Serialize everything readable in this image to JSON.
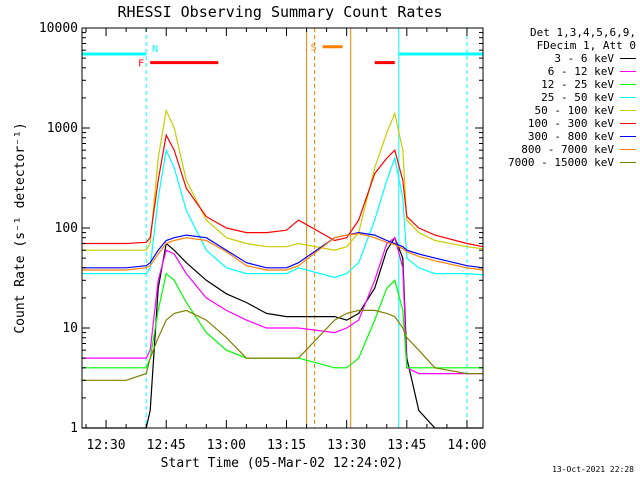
{
  "chart_data": {
    "type": "line",
    "title": "RHESSI Observing Summary Count Rates",
    "xlabel": "Start Time (05-Mar-02 12:24:02)",
    "ylabel": "Count Rate (s⁻¹ detector⁻¹)",
    "ylim": [
      1,
      10000
    ],
    "yscale": "log",
    "xlim_minutes": [
      "12:24",
      "14:04"
    ],
    "xticks": [
      "12:30",
      "12:45",
      "13:00",
      "13:15",
      "13:30",
      "13:45",
      "14:00"
    ],
    "yticks": [
      "1",
      "10",
      "100",
      "1000",
      "10000"
    ],
    "grid": false,
    "legend_position": "right",
    "legend_header": [
      "Det 1,3,4,5,6,9,",
      "FDecim 1, Att 0"
    ],
    "data_gaps": [
      [
        "13:20",
        "13:27"
      ]
    ],
    "series": [
      {
        "name": "3 - 6 keV",
        "color": "#000000",
        "x": [
          "12:24",
          "12:35",
          "12:40",
          "12:41",
          "12:43",
          "12:45",
          "12:47",
          "12:50",
          "12:55",
          "13:00",
          "13:05",
          "13:10",
          "13:15",
          "13:18",
          "13:27",
          "13:30",
          "13:33",
          "13:37",
          "13:40",
          "13:42",
          "13:44",
          "13:45",
          "13:48",
          "13:52",
          "14:00",
          "14:04"
        ],
        "y": [
          1,
          1,
          1,
          1.5,
          25,
          70,
          60,
          45,
          30,
          22,
          18,
          14,
          13,
          13,
          13,
          12,
          14,
          25,
          60,
          80,
          50,
          5,
          1.5,
          1,
          1,
          1
        ]
      },
      {
        "name": "6 - 12 keV",
        "color": "#ff00ff",
        "x": [
          "12:24",
          "12:35",
          "12:40",
          "12:41",
          "12:43",
          "12:45",
          "12:47",
          "12:50",
          "12:55",
          "13:00",
          "13:05",
          "13:10",
          "13:15",
          "13:18",
          "13:27",
          "13:30",
          "13:33",
          "13:37",
          "13:40",
          "13:42",
          "13:44",
          "13:45",
          "13:48",
          "13:52",
          "14:00",
          "14:04"
        ],
        "y": [
          5,
          5,
          5,
          6,
          30,
          60,
          55,
          35,
          20,
          15,
          12,
          10,
          10,
          10,
          9,
          10,
          12,
          30,
          70,
          80,
          40,
          4,
          3.5,
          3.5,
          3.5,
          3.5
        ]
      },
      {
        "name": "12 - 25 keV",
        "color": "#00ff00",
        "x": [
          "12:24",
          "12:35",
          "12:40",
          "12:41",
          "12:43",
          "12:45",
          "12:47",
          "12:50",
          "12:55",
          "13:00",
          "13:05",
          "13:10",
          "13:15",
          "13:18",
          "13:27",
          "13:30",
          "13:33",
          "13:37",
          "13:40",
          "13:42",
          "13:44",
          "13:45",
          "13:48",
          "13:52",
          "14:00",
          "14:04"
        ],
        "y": [
          4,
          4,
          4,
          5,
          15,
          35,
          30,
          18,
          9,
          6,
          5,
          5,
          5,
          5,
          4,
          4,
          5,
          12,
          25,
          30,
          15,
          4,
          4,
          4,
          4,
          4
        ]
      },
      {
        "name": "25 - 50 keV",
        "color": "#00ffff",
        "x": [
          "12:24",
          "12:35",
          "12:40",
          "12:41",
          "12:43",
          "12:45",
          "12:47",
          "12:50",
          "12:55",
          "13:00",
          "13:05",
          "13:10",
          "13:15",
          "13:18",
          "13:27",
          "13:30",
          "13:33",
          "13:37",
          "13:40",
          "13:42",
          "13:44",
          "13:45",
          "13:48",
          "13:52",
          "14:00",
          "14:04"
        ],
        "y": [
          35,
          35,
          35,
          40,
          200,
          600,
          400,
          150,
          60,
          40,
          35,
          35,
          35,
          40,
          32,
          35,
          45,
          120,
          300,
          500,
          200,
          50,
          40,
          35,
          35,
          34
        ]
      },
      {
        "name": "50 - 100 keV",
        "color": "#cccc00",
        "x": [
          "12:24",
          "12:35",
          "12:40",
          "12:41",
          "12:43",
          "12:45",
          "12:47",
          "12:50",
          "12:55",
          "13:00",
          "13:05",
          "13:10",
          "13:15",
          "13:18",
          "13:27",
          "13:30",
          "13:33",
          "13:37",
          "13:40",
          "13:42",
          "13:44",
          "13:45",
          "13:48",
          "13:52",
          "14:00",
          "14:04"
        ],
        "y": [
          60,
          60,
          60,
          70,
          500,
          1500,
          1000,
          300,
          120,
          80,
          70,
          65,
          65,
          70,
          60,
          65,
          90,
          400,
          900,
          1400,
          600,
          120,
          90,
          75,
          65,
          62
        ]
      },
      {
        "name": "100 - 300 keV",
        "color": "#ff0000",
        "x": [
          "12:24",
          "12:35",
          "12:40",
          "12:41",
          "12:43",
          "12:45",
          "12:47",
          "12:50",
          "12:55",
          "13:00",
          "13:05",
          "13:10",
          "13:15",
          "13:18",
          "13:27",
          "13:30",
          "13:33",
          "13:37",
          "13:40",
          "13:42",
          "13:44",
          "13:45",
          "13:48",
          "13:52",
          "14:00",
          "14:04"
        ],
        "y": [
          70,
          70,
          72,
          80,
          300,
          850,
          600,
          250,
          130,
          100,
          90,
          90,
          95,
          120,
          75,
          80,
          120,
          350,
          500,
          600,
          300,
          130,
          100,
          85,
          70,
          65
        ]
      },
      {
        "name": "300 - 800 keV",
        "color": "#0000ff",
        "x": [
          "12:24",
          "12:35",
          "12:40",
          "12:41",
          "12:43",
          "12:45",
          "12:47",
          "12:50",
          "12:55",
          "13:00",
          "13:05",
          "13:10",
          "13:15",
          "13:18",
          "13:27",
          "13:30",
          "13:33",
          "13:37",
          "13:40",
          "13:42",
          "13:44",
          "13:45",
          "13:48",
          "13:52",
          "14:00",
          "14:04"
        ],
        "y": [
          40,
          40,
          42,
          45,
          60,
          75,
          80,
          85,
          80,
          60,
          45,
          40,
          40,
          45,
          80,
          85,
          90,
          85,
          75,
          70,
          65,
          60,
          55,
          50,
          42,
          40
        ]
      },
      {
        "name": "800 - 7000 keV",
        "color": "#ff8000",
        "x": [
          "12:24",
          "12:35",
          "12:40",
          "12:41",
          "12:43",
          "12:45",
          "12:47",
          "12:50",
          "12:55",
          "13:00",
          "13:05",
          "13:10",
          "13:15",
          "13:18",
          "13:27",
          "13:30",
          "13:33",
          "13:37",
          "13:40",
          "13:42",
          "13:44",
          "13:45",
          "13:48",
          "13:52",
          "14:00",
          "14:04"
        ],
        "y": [
          38,
          38,
          40,
          42,
          55,
          70,
          75,
          80,
          75,
          58,
          42,
          38,
          38,
          42,
          80,
          85,
          88,
          80,
          72,
          68,
          62,
          58,
          52,
          47,
          40,
          38
        ]
      },
      {
        "name": "7000 - 15000 keV",
        "color": "#808000",
        "x": [
          "12:24",
          "12:35",
          "12:40",
          "12:41",
          "12:43",
          "12:45",
          "12:47",
          "12:50",
          "12:55",
          "13:00",
          "13:05",
          "13:10",
          "13:15",
          "13:18",
          "13:27",
          "13:30",
          "13:33",
          "13:37",
          "13:40",
          "13:42",
          "13:44",
          "13:45",
          "13:48",
          "13:52",
          "14:00",
          "14:04"
        ],
        "y": [
          3,
          3,
          3.5,
          5,
          8,
          12,
          14,
          15,
          12,
          8,
          5,
          5,
          5,
          5,
          12,
          14,
          15,
          15,
          14,
          13,
          10,
          8,
          6,
          4,
          3.5,
          3.5
        ]
      }
    ],
    "flags": [
      {
        "label": "N",
        "color": "#00ffff",
        "segments": [
          [
            "12:24",
            "12:40"
          ],
          [
            "13:43",
            "14:04"
          ]
        ],
        "level": 5500,
        "boundaries": [
          "12:24",
          "12:40",
          "13:43",
          "14:00"
        ]
      },
      {
        "label": "F",
        "color": "#ff0000",
        "segments": [
          [
            "12:41",
            "12:58"
          ],
          [
            "13:37",
            "13:42"
          ]
        ],
        "level": 4500
      },
      {
        "label": "S",
        "color": "#ff8000",
        "segments": [
          [
            "13:24",
            "13:29"
          ]
        ],
        "level": 6500,
        "boundaries": [
          "13:20",
          "13:22",
          "13:31"
        ]
      }
    ]
  },
  "footer": {
    "date": "13-Oct-2021 22:28"
  }
}
